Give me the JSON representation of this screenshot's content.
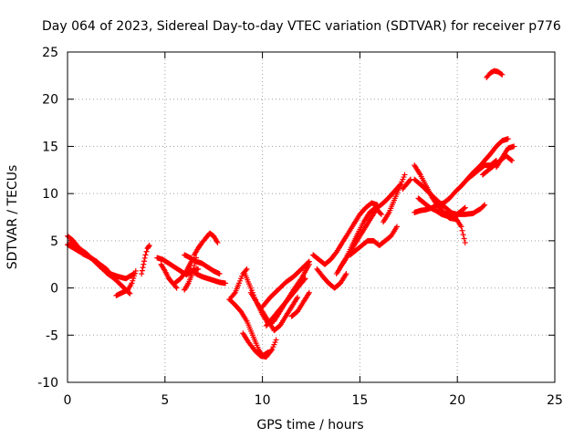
{
  "chart_data": {
    "type": "scatter",
    "title": "Day 064 of 2023, Sidereal Day-to-day VTEC variation (SDTVAR) for receiver p776",
    "xlabel": "GPS time / hours",
    "ylabel": "SDTVAR / TECUs",
    "xlim": [
      0,
      25
    ],
    "ylim": [
      -10,
      25
    ],
    "xticks": [
      0,
      5,
      10,
      15,
      20,
      25
    ],
    "yticks": [
      -10,
      -5,
      0,
      5,
      10,
      15,
      20,
      25
    ],
    "grid": true,
    "marker": "+",
    "color": "#ff0000",
    "series": [
      {
        "x": [
          0.0,
          0.3,
          0.6,
          1.0,
          1.4,
          1.8,
          2.2,
          2.6,
          3.0,
          3.4
        ],
        "y": [
          5.5,
          5.0,
          4.2,
          3.6,
          2.8,
          2.0,
          1.5,
          1.2,
          1.0,
          1.5
        ]
      },
      {
        "x": [
          0.1,
          0.4,
          0.8,
          1.2,
          1.6,
          2.0,
          2.4,
          2.8,
          3.2
        ],
        "y": [
          4.8,
          4.2,
          3.6,
          3.2,
          2.6,
          2.0,
          1.0,
          0.2,
          -0.6
        ]
      },
      {
        "x": [
          0.0,
          0.5,
          1.0,
          1.5,
          2.0,
          2.4
        ],
        "y": [
          4.6,
          4.0,
          3.4,
          2.8,
          1.6,
          1.0
        ]
      },
      {
        "x": [
          2.5,
          2.8,
          3.1,
          3.3,
          3.5
        ],
        "y": [
          -0.8,
          -0.5,
          -0.2,
          0.5,
          1.8
        ]
      },
      {
        "x": [
          3.8,
          3.9,
          4.0,
          4.1,
          4.2
        ],
        "y": [
          1.5,
          2.5,
          3.5,
          4.2,
          4.5
        ]
      },
      {
        "x": [
          4.6,
          4.9,
          5.2,
          5.5,
          5.8,
          6.1,
          6.4,
          6.7
        ],
        "y": [
          3.2,
          3.0,
          2.6,
          2.2,
          1.8,
          1.4,
          1.8,
          2.0
        ]
      },
      {
        "x": [
          4.8,
          5.0,
          5.2,
          5.4,
          5.6
        ],
        "y": [
          2.5,
          1.8,
          1.0,
          0.5,
          0.0
        ]
      },
      {
        "x": [
          5.5,
          5.8,
          6.1,
          6.4
        ],
        "y": [
          0.5,
          1.0,
          1.8,
          3.0
        ]
      },
      {
        "x": [
          6.0,
          6.3,
          6.6,
          6.9,
          7.2,
          7.5,
          7.8
        ],
        "y": [
          3.5,
          3.2,
          2.8,
          2.6,
          2.2,
          1.8,
          1.5
        ]
      },
      {
        "x": [
          6.5,
          6.7,
          6.9,
          7.1,
          7.3,
          7.5,
          7.7
        ],
        "y": [
          3.5,
          4.2,
          4.8,
          5.3,
          5.8,
          5.5,
          4.8
        ]
      },
      {
        "x": [
          6.3,
          6.6,
          6.9,
          7.2,
          7.5,
          7.8,
          8.1
        ],
        "y": [
          2.0,
          1.5,
          1.2,
          1.0,
          0.8,
          0.6,
          0.5
        ]
      },
      {
        "x": [
          6.0,
          6.2,
          6.4,
          6.6
        ],
        "y": [
          -0.2,
          0.5,
          1.5,
          3.2
        ]
      },
      {
        "x": [
          8.3,
          8.6,
          8.9,
          9.2,
          9.5,
          9.8,
          10.0,
          10.3
        ],
        "y": [
          -1.2,
          -1.8,
          -2.5,
          -3.5,
          -5.0,
          -6.5,
          -7.2,
          -6.8
        ]
      },
      {
        "x": [
          9.0,
          9.3,
          9.6,
          9.9,
          10.2,
          10.5,
          10.7
        ],
        "y": [
          -4.8,
          -5.8,
          -6.6,
          -7.2,
          -7.3,
          -6.5,
          -5.5
        ]
      },
      {
        "x": [
          9.1,
          9.4,
          9.7,
          10.0,
          10.3,
          10.6,
          10.9,
          11.2,
          11.6,
          12.0,
          12.4
        ],
        "y": [
          1.5,
          0.0,
          -1.5,
          -2.8,
          -3.8,
          -3.5,
          -2.5,
          -1.5,
          -0.2,
          1.0,
          2.5
        ]
      },
      {
        "x": [
          9.4,
          9.7,
          10.0,
          10.3,
          10.6,
          10.9,
          11.2,
          11.5,
          11.8
        ],
        "y": [
          -0.5,
          -1.5,
          -2.5,
          -3.5,
          -4.5,
          -4.0,
          -3.0,
          -2.0,
          -1.0
        ]
      },
      {
        "x": [
          10.0,
          10.4,
          10.8,
          11.2,
          11.6,
          12.0,
          12.4
        ],
        "y": [
          -2.0,
          -1.0,
          -0.2,
          0.6,
          1.2,
          2.0,
          2.8
        ]
      },
      {
        "x": [
          10.2,
          10.6,
          11.0,
          11.4,
          11.8,
          12.2
        ],
        "y": [
          -4.0,
          -3.0,
          -2.0,
          -1.0,
          0.0,
          1.0
        ]
      },
      {
        "x": [
          8.4,
          8.6,
          8.8,
          9.0,
          9.2
        ],
        "y": [
          -1.0,
          -0.5,
          0.5,
          1.5,
          2.0
        ]
      },
      {
        "x": [
          11.5,
          11.8,
          12.1,
          12.4
        ],
        "y": [
          -3.0,
          -2.5,
          -1.5,
          -0.5
        ]
      },
      {
        "x": [
          12.8,
          13.1,
          13.4,
          13.7,
          14.0,
          14.3
        ],
        "y": [
          2.0,
          1.2,
          0.5,
          0.0,
          0.5,
          1.5
        ]
      },
      {
        "x": [
          12.6,
          12.9,
          13.2,
          13.5,
          13.8,
          14.1,
          14.4,
          14.7,
          15.0,
          15.3,
          15.6,
          15.9
        ],
        "y": [
          3.5,
          3.0,
          2.5,
          3.0,
          3.8,
          4.8,
          5.8,
          6.8,
          7.8,
          8.5,
          9.0,
          8.8
        ]
      },
      {
        "x": [
          13.8,
          14.1,
          14.4,
          14.7,
          15.0,
          15.3,
          15.6,
          15.9,
          16.2,
          16.5,
          16.8,
          17.1
        ],
        "y": [
          1.5,
          2.5,
          3.5,
          4.5,
          5.5,
          6.5,
          7.5,
          8.5,
          9.0,
          9.6,
          10.3,
          11.0
        ]
      },
      {
        "x": [
          14.0,
          14.3,
          14.6,
          14.9,
          15.2,
          15.5,
          15.8,
          16.1
        ],
        "y": [
          2.2,
          3.2,
          4.5,
          5.8,
          7.0,
          8.0,
          8.5,
          7.8
        ]
      },
      {
        "x": [
          14.5,
          14.8,
          15.1,
          15.4,
          15.7,
          16.0,
          16.3,
          16.6,
          16.9
        ],
        "y": [
          3.5,
          4.0,
          4.5,
          5.0,
          5.0,
          4.5,
          5.0,
          5.5,
          6.5
        ]
      },
      {
        "x": [
          16.2,
          16.5,
          16.8,
          17.1,
          17.3
        ],
        "y": [
          7.0,
          8.0,
          9.5,
          11.0,
          12.0
        ]
      },
      {
        "x": [
          17.2,
          17.4,
          17.6
        ],
        "y": [
          10.5,
          11.0,
          11.5
        ]
      },
      {
        "x": [
          17.8,
          18.2,
          18.6,
          19.0,
          19.4,
          19.8,
          20.2,
          20.4
        ],
        "y": [
          11.5,
          10.8,
          10.0,
          9.2,
          8.5,
          7.8,
          6.5,
          4.8
        ]
      },
      {
        "x": [
          17.8,
          18.1,
          18.4,
          18.7,
          19.0,
          19.3,
          19.6,
          19.9
        ],
        "y": [
          13.0,
          12.0,
          10.8,
          9.6,
          8.7,
          8.0,
          7.4,
          7.3
        ]
      },
      {
        "x": [
          18.0,
          18.3,
          18.6,
          18.9,
          19.2,
          19.5,
          19.8,
          20.1,
          20.4
        ],
        "y": [
          9.5,
          9.0,
          8.5,
          8.2,
          7.8,
          7.6,
          7.5,
          8.0,
          8.5
        ]
      },
      {
        "x": [
          17.8,
          18.1,
          18.4,
          18.7,
          19.0,
          19.3,
          19.6,
          19.9,
          20.2,
          20.5,
          20.8,
          21.1,
          21.4,
          21.7,
          22.0
        ],
        "y": [
          8.0,
          8.2,
          8.3,
          8.5,
          8.8,
          9.0,
          9.5,
          10.2,
          10.8,
          11.5,
          12.0,
          12.5,
          13.0,
          13.0,
          13.5
        ]
      },
      {
        "x": [
          19.2,
          19.6,
          20.0,
          20.4,
          20.8,
          21.2,
          21.4
        ],
        "y": [
          7.8,
          8.0,
          7.8,
          7.8,
          7.9,
          8.4,
          8.8
        ]
      },
      {
        "x": [
          20.5,
          20.8,
          21.1,
          21.4,
          21.7,
          22.0,
          22.3,
          22.6
        ],
        "y": [
          11.5,
          12.2,
          12.8,
          13.5,
          14.2,
          15.0,
          15.6,
          15.8
        ]
      },
      {
        "x": [
          21.3,
          21.6,
          21.9,
          22.2,
          22.5,
          22.8
        ],
        "y": [
          12.0,
          12.5,
          13.0,
          13.5,
          14.0,
          13.5
        ]
      },
      {
        "x": [
          22.0,
          22.3,
          22.6,
          22.9
        ],
        "y": [
          12.8,
          13.8,
          14.8,
          15.0
        ]
      },
      {
        "x": [
          21.5,
          21.7,
          21.9,
          22.1,
          22.3
        ],
        "y": [
          22.3,
          22.8,
          23.0,
          22.9,
          22.6
        ]
      }
    ]
  }
}
